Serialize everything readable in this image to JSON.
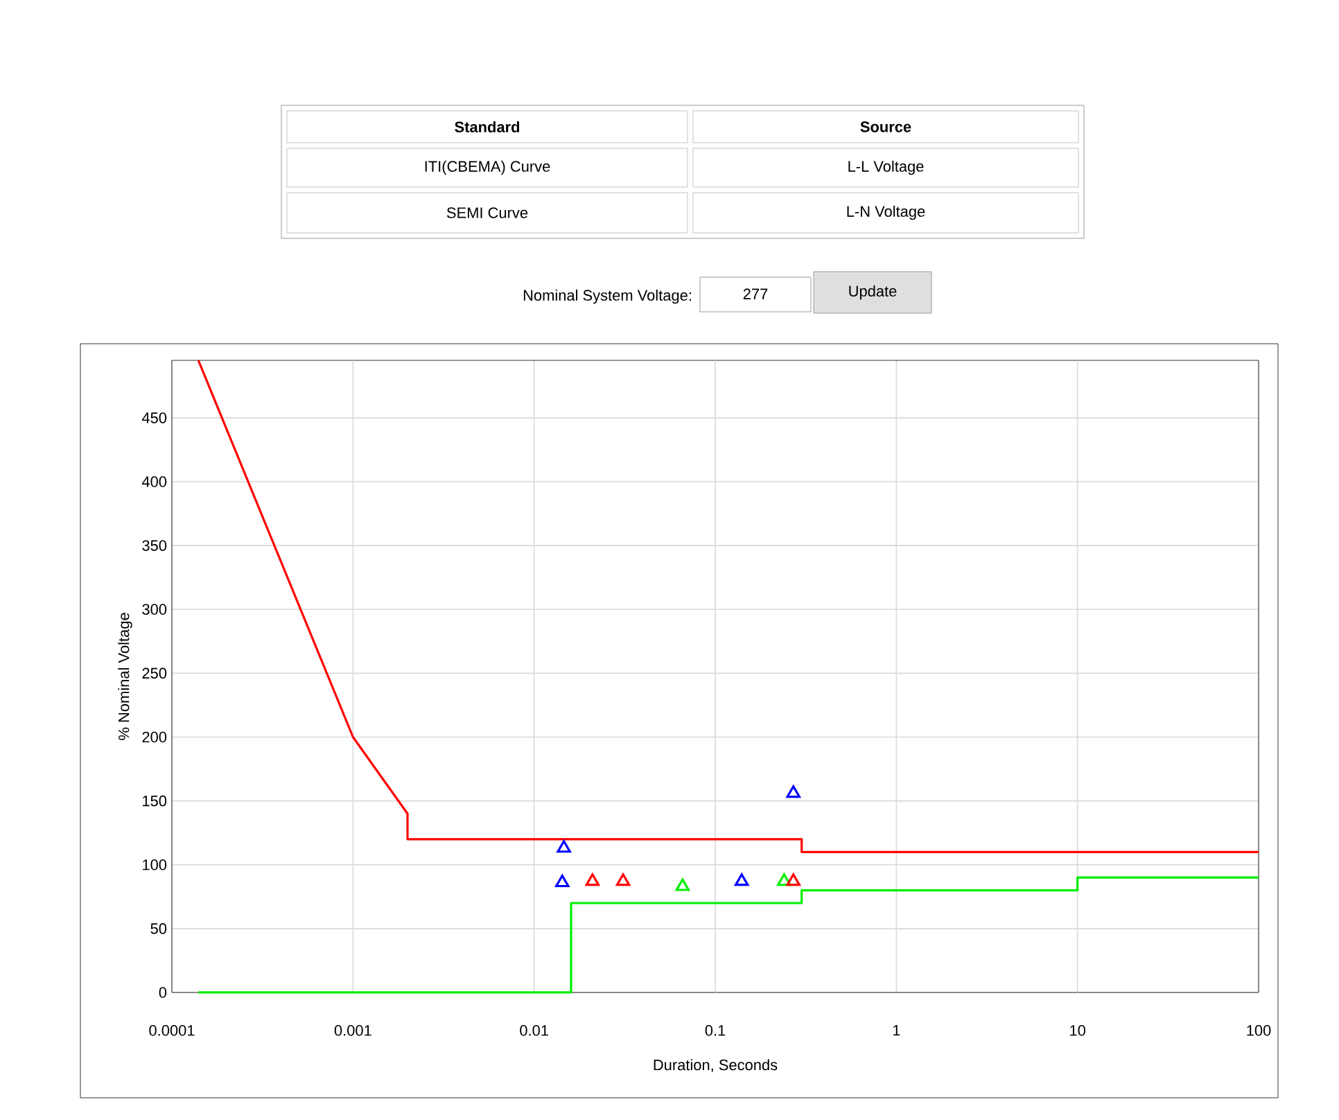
{
  "chart_data": {
    "type": "line",
    "xlabel": "Duration, Seconds",
    "ylabel": "% Nominal Voltage",
    "log": "x",
    "grid": true,
    "xlim": [
      0.0001,
      100
    ],
    "ylim": [
      0,
      495
    ],
    "xticks": [
      0.0001,
      0.001,
      0.01,
      0.1,
      1,
      10,
      100
    ],
    "yticks": [
      0,
      50,
      100,
      150,
      200,
      250,
      300,
      350,
      400,
      450
    ],
    "annotations": [
      "Standard",
      "Source",
      "ITI(CBEMA) Curve",
      "L-L Voltage",
      "SEMI Curve",
      "L-N Voltage",
      "Nominal System Voltage:",
      "277",
      "Update"
    ],
    "series": [
      {
        "color": "#ff0000",
        "x": [
          0.00014,
          0.001,
          0.002,
          0.002,
          0.3,
          0.3,
          100
        ],
        "values": [
          495,
          200,
          140,
          120,
          120,
          110,
          110
        ]
      },
      {
        "color": "#00ee00",
        "x": [
          0.00014,
          0.016,
          0.016,
          0.3,
          0.3,
          10,
          10,
          100
        ],
        "values": [
          0,
          0,
          70,
          70,
          80,
          80,
          90,
          90
        ]
      },
      {
        "type": "scatter",
        "marker": "triangle",
        "color": "#00ee00",
        "x": [
          0.066,
          0.24
        ],
        "values": [
          83,
          87
        ]
      },
      {
        "type": "scatter",
        "marker": "triangle",
        "color": "#ff0000",
        "x": [
          0.021,
          0.031,
          0.27
        ],
        "values": [
          87,
          87,
          87
        ]
      },
      {
        "type": "scatter",
        "marker": "triangle",
        "color": "#0000ff",
        "x": [
          0.0146,
          0.0143,
          0.14,
          0.27
        ],
        "values": [
          113,
          86,
          87,
          156
        ]
      }
    ]
  }
}
